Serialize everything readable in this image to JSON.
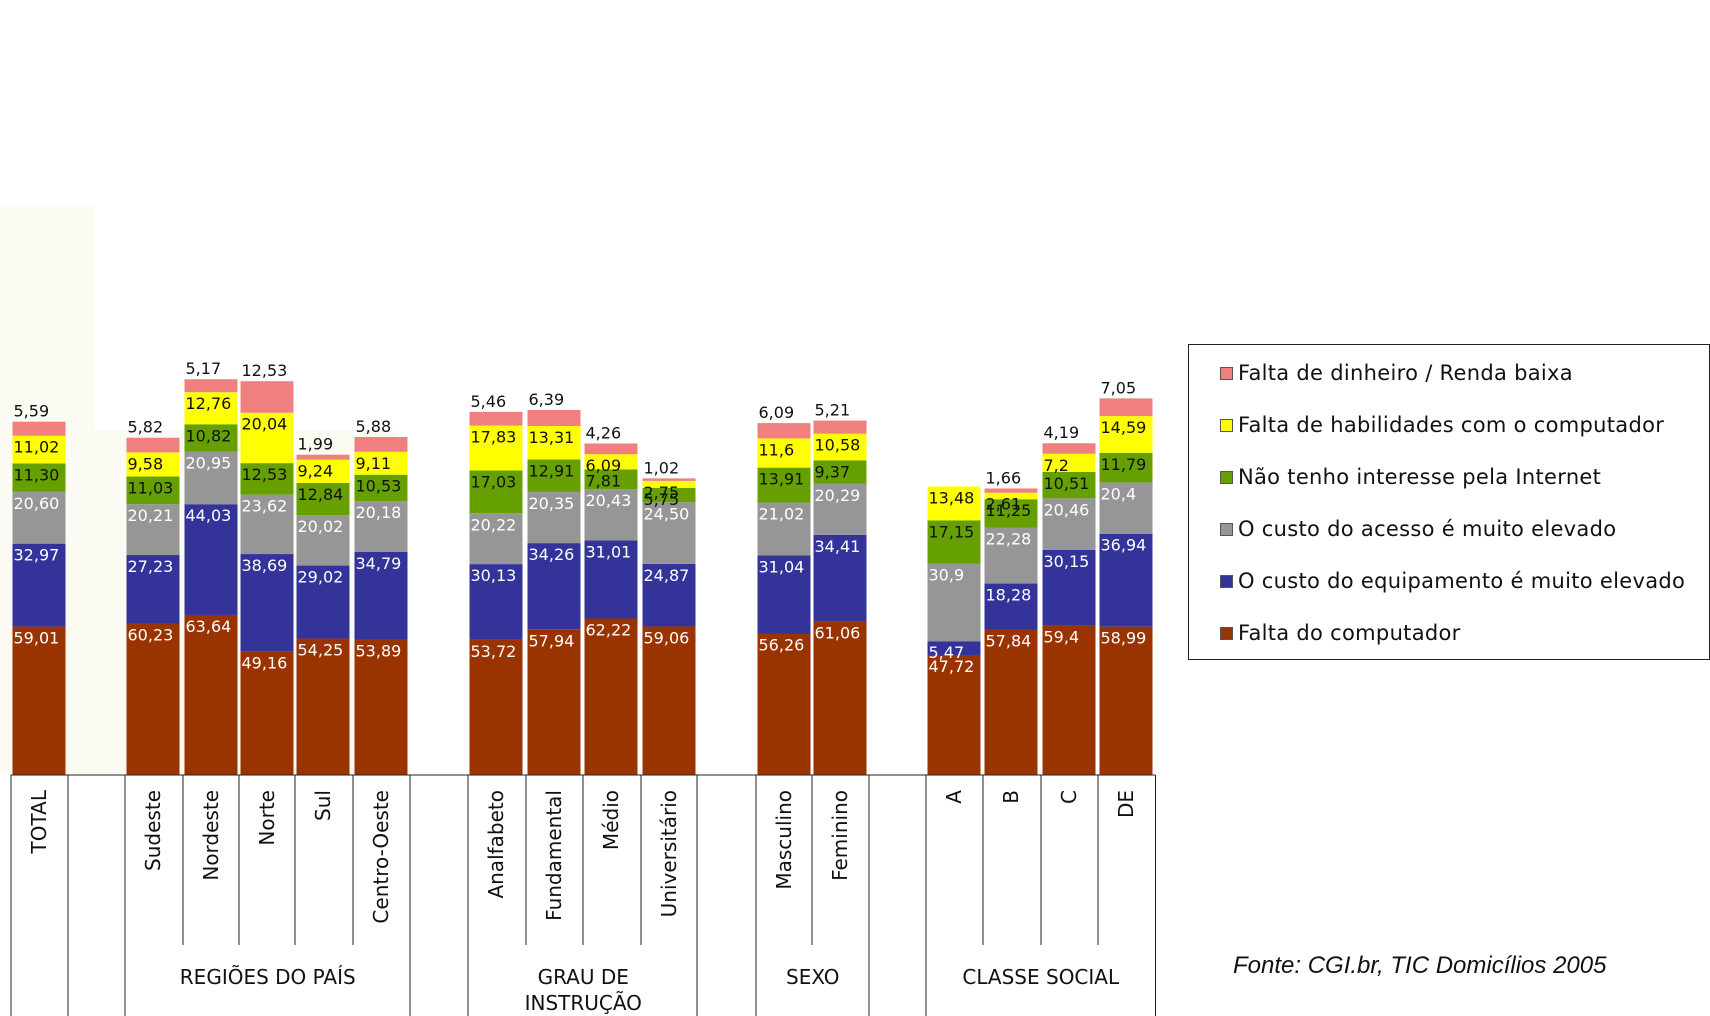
{
  "chart_data": {
    "type": "bar",
    "stacked": true,
    "categories": [
      "TOTAL",
      "Sudeste",
      "Nordeste",
      "Norte",
      "Sul",
      "Centro-Oeste",
      "Analfabeto",
      "Fundamental",
      "Médio",
      "Universitário",
      "Masculino",
      "Feminino",
      "A",
      "B",
      "C",
      "DE"
    ],
    "groups": [
      {
        "label": "",
        "categories": [
          "TOTAL"
        ]
      },
      {
        "label": "REGIÕES DO PAÍS",
        "categories": [
          "Sudeste",
          "Nordeste",
          "Norte",
          "Sul",
          "Centro-Oeste"
        ]
      },
      {
        "label": "GRAU DE INSTRUÇÃO",
        "categories": [
          "Analfabeto",
          "Fundamental",
          "Médio",
          "Universitário"
        ]
      },
      {
        "label": "SEXO",
        "categories": [
          "Masculino",
          "Feminino"
        ]
      },
      {
        "label": "CLASSE  SOCIAL",
        "categories": [
          "A",
          "B",
          "C",
          "DE"
        ]
      }
    ],
    "series": [
      {
        "name": "Falta do computador",
        "color": "#993300",
        "values": [
          59.01,
          60.23,
          63.64,
          49.16,
          54.25,
          53.89,
          53.72,
          57.94,
          62.22,
          59.06,
          56.26,
          61.06,
          47.72,
          57.84,
          59.4,
          58.99
        ],
        "labels": [
          "59,01",
          "60,23",
          "63,64",
          "49,16",
          "54,25",
          "53,89",
          "53,72",
          "57,94",
          "62,22",
          "59,06",
          "56,26",
          "61,06",
          "47,72",
          "57,84",
          "59,4",
          "58,99"
        ]
      },
      {
        "name": "O custo do equipamento é muito elevado",
        "color": "#333399",
        "values": [
          32.97,
          27.23,
          44.03,
          38.69,
          29.02,
          34.79,
          30.13,
          34.26,
          31.01,
          24.87,
          31.04,
          34.41,
          5.47,
          18.28,
          30.15,
          36.94
        ],
        "labels": [
          "32,97",
          "27,23",
          "44,03",
          "38,69",
          "29,02",
          "34,79",
          "30,13",
          "34,26",
          "31,01",
          "24,87",
          "31,04",
          "34,41",
          "5,47",
          "18,28",
          "30,15",
          "36,94"
        ]
      },
      {
        "name": "O custo do acesso é muito elevado",
        "color": "#969696",
        "values": [
          20.6,
          20.21,
          20.95,
          23.62,
          20.02,
          20.18,
          20.22,
          20.35,
          20.43,
          24.5,
          21.02,
          20.29,
          30.9,
          22.28,
          20.46,
          20.4
        ],
        "labels": [
          "20,60",
          "20,21",
          "20,95",
          "23,62",
          "20,02",
          "20,18",
          "20,22",
          "20,35",
          "20,43",
          "24,50",
          "21,02",
          "20,29",
          "30,9",
          "22,28",
          "20,46",
          "20,4"
        ]
      },
      {
        "name": "Não tenho interesse pela Internet",
        "color": "#66A000",
        "values": [
          11.3,
          11.03,
          10.82,
          12.53,
          12.84,
          10.53,
          17.03,
          12.91,
          7.81,
          5.75,
          13.91,
          9.37,
          17.15,
          11.25,
          10.51,
          11.79
        ],
        "labels": [
          "11,30",
          "11,03",
          "10,82",
          "12,53",
          "12,84",
          "10,53",
          "17,03",
          "12,91",
          "7,81",
          "5,75",
          "13,91",
          "9,37",
          "17,15",
          "11,25",
          "10,51",
          "11,79"
        ]
      },
      {
        "name": "Falta de habilidades com o computador",
        "color": "#FFFF00",
        "values": [
          11.02,
          9.58,
          12.76,
          20.04,
          9.24,
          9.11,
          17.83,
          13.31,
          6.09,
          2.75,
          11.6,
          10.58,
          13.48,
          2.61,
          7.2,
          14.59
        ],
        "labels": [
          "11,02",
          "9,58",
          "12,76",
          "20,04",
          "9,24",
          "9,11",
          "17,83",
          "13,31",
          "6,09",
          "2,75",
          "11,6",
          "10,58",
          "13,48",
          "2,61",
          "7,2",
          "14,59"
        ]
      },
      {
        "name": "Falta de dinheiro / Renda baixa",
        "color": "#F08080",
        "values": [
          5.59,
          5.82,
          5.17,
          12.53,
          1.99,
          5.88,
          5.46,
          6.39,
          4.26,
          1.02,
          6.09,
          5.21,
          0,
          1.66,
          4.19,
          7.05
        ],
        "labels": [
          "5,59",
          "5,82",
          "5,17",
          "12,53",
          "1,99",
          "5,88",
          "5,46",
          "6,39",
          "4,26",
          "1,02",
          "6,09",
          "5,21",
          "",
          "1,66",
          "4,19",
          "7,05"
        ]
      }
    ],
    "legend_position": "right",
    "source": "Fonte: CGI.br, TIC Domicílios 2005"
  }
}
